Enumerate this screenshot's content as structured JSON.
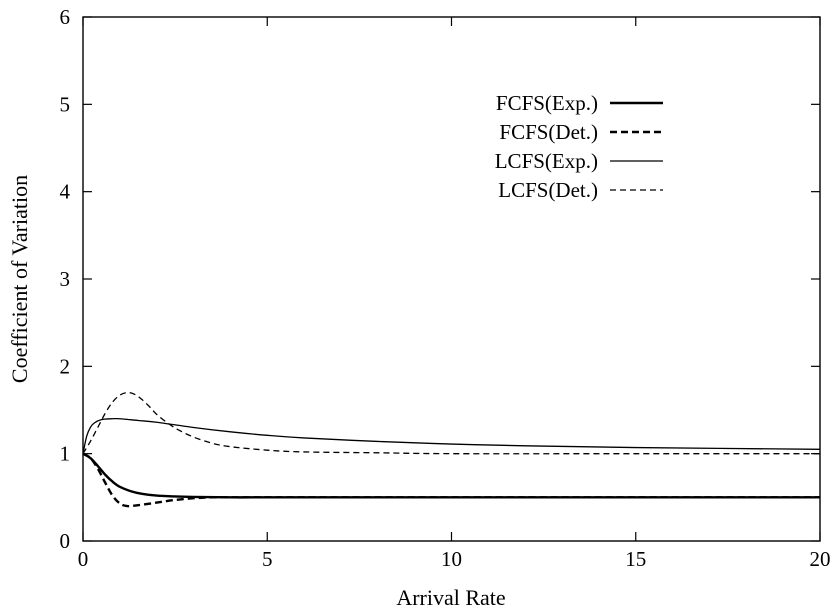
{
  "chart_data": {
    "type": "line",
    "title": "",
    "xlabel": "Arrival Rate",
    "ylabel": "Coefficient of Variation",
    "xlim": [
      0,
      20
    ],
    "ylim": [
      0,
      6
    ],
    "xticks": [
      "0",
      "5",
      "10",
      "15",
      "20"
    ],
    "yticks": [
      "0",
      "1",
      "2",
      "3",
      "4",
      "5",
      "6"
    ],
    "grid": false,
    "legend_position": "top-right",
    "series": [
      {
        "name": "FCFS(Exp.)",
        "style": "thick-solid",
        "x": [
          0,
          0.2,
          0.4,
          0.6,
          0.8,
          1.0,
          1.3,
          1.6,
          2.0,
          2.5,
          3.0,
          4.0,
          5.0,
          8.0,
          12.0,
          16.0,
          20.0
        ],
        "y": [
          1.0,
          0.95,
          0.86,
          0.76,
          0.68,
          0.62,
          0.57,
          0.54,
          0.52,
          0.51,
          0.505,
          0.5,
          0.5,
          0.5,
          0.5,
          0.5,
          0.5
        ]
      },
      {
        "name": "FCFS(Det.)",
        "style": "thick-dashed",
        "x": [
          0,
          0.2,
          0.4,
          0.6,
          0.8,
          1.0,
          1.2,
          1.5,
          2.0,
          2.5,
          3.0,
          3.5,
          4.0,
          5.0,
          8.0,
          12.0,
          16.0,
          20.0
        ],
        "y": [
          1.0,
          0.95,
          0.83,
          0.67,
          0.52,
          0.43,
          0.4,
          0.41,
          0.44,
          0.47,
          0.49,
          0.5,
          0.5,
          0.5,
          0.5,
          0.5,
          0.5,
          0.5
        ]
      },
      {
        "name": "LCFS(Exp.)",
        "style": "thin-solid",
        "x": [
          0,
          0.1,
          0.2,
          0.3,
          0.5,
          0.8,
          1.0,
          1.5,
          2.0,
          3.0,
          4.0,
          5.0,
          6.0,
          8.0,
          10.0,
          12.0,
          15.0,
          20.0
        ],
        "y": [
          1.0,
          1.2,
          1.3,
          1.35,
          1.39,
          1.4,
          1.4,
          1.38,
          1.36,
          1.3,
          1.25,
          1.21,
          1.18,
          1.14,
          1.11,
          1.09,
          1.07,
          1.05
        ]
      },
      {
        "name": "LCFS(Det.)",
        "style": "thin-dashed",
        "x": [
          0,
          0.2,
          0.4,
          0.6,
          0.8,
          1.0,
          1.2,
          1.4,
          1.6,
          1.8,
          2.0,
          2.3,
          2.6,
          3.0,
          3.5,
          4.0,
          5.0,
          6.0,
          8.0,
          10.0,
          15.0,
          20.0
        ],
        "y": [
          1.0,
          1.14,
          1.3,
          1.46,
          1.59,
          1.67,
          1.7,
          1.68,
          1.62,
          1.54,
          1.45,
          1.35,
          1.27,
          1.19,
          1.12,
          1.08,
          1.04,
          1.02,
          1.01,
          1.0,
          1.0,
          1.0
        ]
      }
    ]
  }
}
